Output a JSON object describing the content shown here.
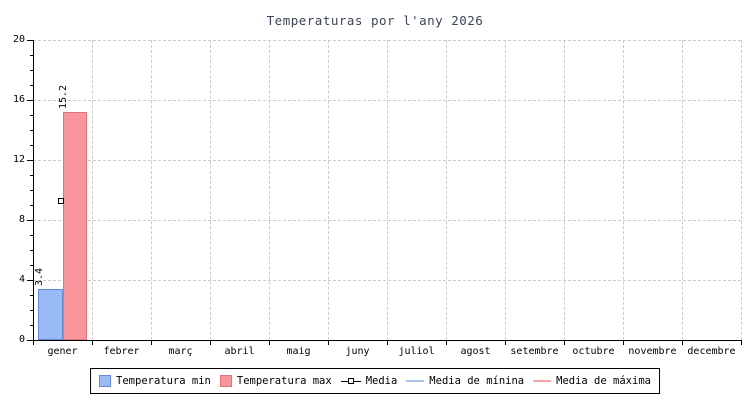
{
  "colors": {
    "title": "#3c4557",
    "grid": "#cccccc",
    "axis": "#000000",
    "background": "#ffffff"
  },
  "chart_data": {
    "type": "bar",
    "title": "Temperaturas por l'any 2026",
    "categories": [
      "gener",
      "febrer",
      "març",
      "abril",
      "maig",
      "juny",
      "juliol",
      "agost",
      "setembre",
      "octubre",
      "novembre",
      "decembre"
    ],
    "ylim": [
      0,
      20
    ],
    "yticks": [
      0,
      4,
      8,
      12,
      16,
      20
    ],
    "minor_tick_step": 1,
    "grid": "dashed",
    "legend_position": "bottom",
    "bar_value_labels": true,
    "series": [
      {
        "name": "Temperatura min",
        "kind": "bar",
        "color": "#9abaf6",
        "border": "#6688d8",
        "values": [
          3.4,
          null,
          null,
          null,
          null,
          null,
          null,
          null,
          null,
          null,
          null,
          null
        ]
      },
      {
        "name": "Temperatura max",
        "kind": "bar",
        "color": "#f8969b",
        "border": "#e2737a",
        "values": [
          15.2,
          null,
          null,
          null,
          null,
          null,
          null,
          null,
          null,
          null,
          null,
          null
        ]
      },
      {
        "name": "Media",
        "kind": "marker",
        "color": "#000000",
        "fill": "#ffffff",
        "values": [
          9.3,
          null,
          null,
          null,
          null,
          null,
          null,
          null,
          null,
          null,
          null,
          null
        ]
      },
      {
        "name": "Media de mínina",
        "kind": "line",
        "color": "#a6c3e3",
        "values": []
      },
      {
        "name": "Media de máxima",
        "kind": "line",
        "color": "#f6a3a6",
        "values": []
      }
    ]
  }
}
